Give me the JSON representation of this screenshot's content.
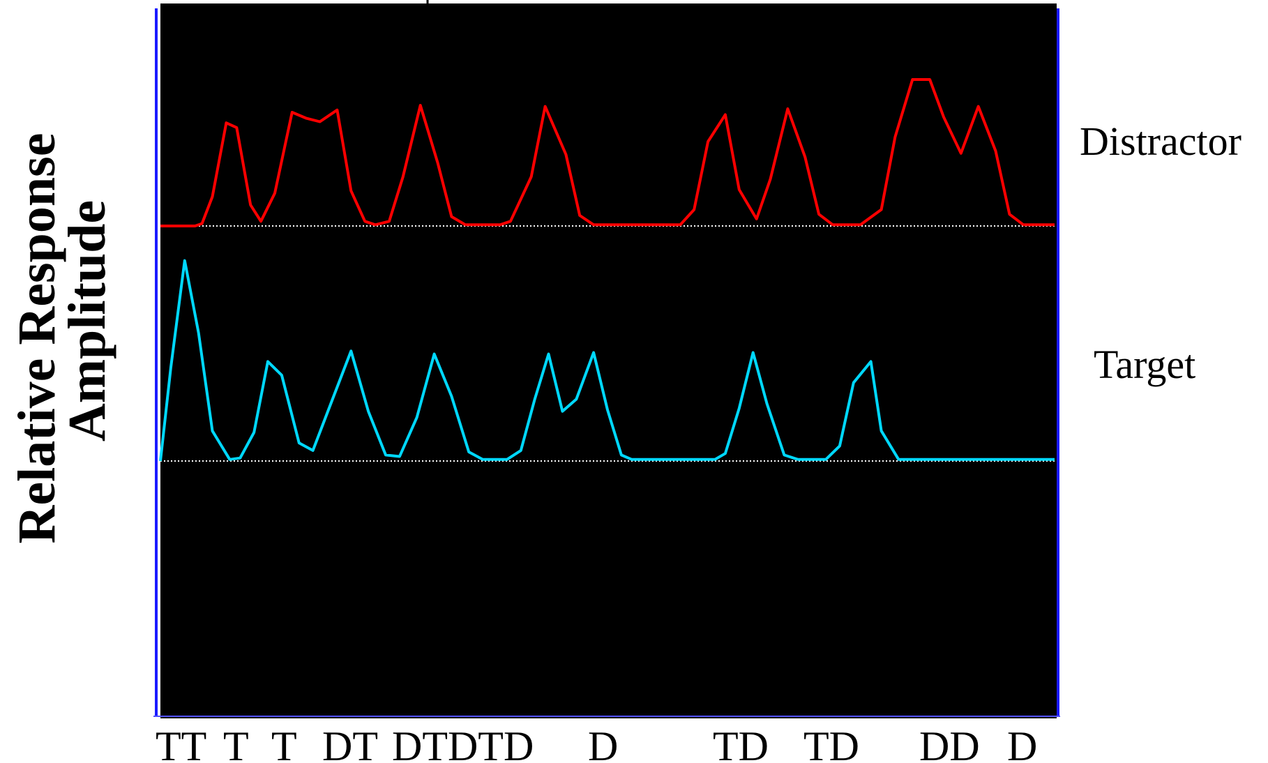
{
  "chart_data": {
    "type": "line",
    "ylabel_lines": [
      "Relative Response",
      "Amplitude"
    ],
    "x_tick_labels": [
      "TT",
      "T",
      "T",
      "DT",
      "DTDTD",
      "D",
      "TD",
      "TD",
      "DD",
      "D"
    ],
    "colors": {
      "plot_background": "#000000",
      "frame": "#1a1aff",
      "baseline": "#ffffff"
    },
    "series": [
      {
        "name": "Distractor",
        "color": "#ff0000",
        "points": [
          [
            0,
            0
          ],
          [
            10,
            0
          ],
          [
            12,
            0.02
          ],
          [
            15,
            0.25
          ],
          [
            19,
            0.88
          ],
          [
            22,
            0.84
          ],
          [
            26,
            0.18
          ],
          [
            29,
            0.04
          ],
          [
            33,
            0.28
          ],
          [
            38,
            0.97
          ],
          [
            42,
            0.92
          ],
          [
            46,
            0.89
          ],
          [
            51,
            0.99
          ],
          [
            55,
            0.3
          ],
          [
            59,
            0.04
          ],
          [
            62,
            0.01
          ],
          [
            66,
            0.04
          ],
          [
            70,
            0.42
          ],
          [
            75,
            1.03
          ],
          [
            80,
            0.54
          ],
          [
            84,
            0.08
          ],
          [
            88,
            0.01
          ],
          [
            94,
            0.01
          ],
          [
            98,
            0.01
          ],
          [
            101,
            0.04
          ],
          [
            107,
            0.42
          ],
          [
            111,
            1.02
          ],
          [
            117,
            0.61
          ],
          [
            121,
            0.09
          ],
          [
            125,
            0.01
          ],
          [
            150,
            0.01
          ],
          [
            154,
            0.14
          ],
          [
            158,
            0.72
          ],
          [
            163,
            0.95
          ],
          [
            167,
            0.31
          ],
          [
            172,
            0.06
          ],
          [
            176,
            0.4
          ],
          [
            181,
            1.0
          ],
          [
            186,
            0.59
          ],
          [
            190,
            0.1
          ],
          [
            194,
            0.01
          ],
          [
            202,
            0.01
          ],
          [
            208,
            0.14
          ],
          [
            212,
            0.76
          ],
          [
            217,
            1.25
          ],
          [
            222,
            1.25
          ],
          [
            226,
            0.93
          ],
          [
            231,
            0.62
          ],
          [
            236,
            1.02
          ],
          [
            241,
            0.64
          ],
          [
            245,
            0.1
          ],
          [
            249,
            0.01
          ],
          [
            258,
            0.01
          ]
        ]
      },
      {
        "name": "Target",
        "color": "#00d8ff",
        "points": [
          [
            0,
            0
          ],
          [
            3,
            0.62
          ],
          [
            7,
            1.33
          ],
          [
            11,
            0.85
          ],
          [
            15,
            0.2
          ],
          [
            20,
            0.01
          ],
          [
            23,
            0.02
          ],
          [
            27,
            0.19
          ],
          [
            31,
            0.66
          ],
          [
            35,
            0.57
          ],
          [
            40,
            0.12
          ],
          [
            44,
            0.07
          ],
          [
            50,
            0.43
          ],
          [
            55,
            0.73
          ],
          [
            60,
            0.33
          ],
          [
            65,
            0.04
          ],
          [
            69,
            0.03
          ],
          [
            74,
            0.29
          ],
          [
            79,
            0.71
          ],
          [
            84,
            0.43
          ],
          [
            89,
            0.06
          ],
          [
            93,
            0.01
          ],
          [
            100,
            0.01
          ],
          [
            104,
            0.07
          ],
          [
            108,
            0.41
          ],
          [
            112,
            0.71
          ],
          [
            116,
            0.33
          ],
          [
            120,
            0.41
          ],
          [
            125,
            0.72
          ],
          [
            129,
            0.34
          ],
          [
            133,
            0.04
          ],
          [
            136,
            0.01
          ],
          [
            150,
            0.01
          ],
          [
            160,
            0.01
          ],
          [
            163,
            0.05
          ],
          [
            167,
            0.35
          ],
          [
            171,
            0.72
          ],
          [
            175,
            0.38
          ],
          [
            180,
            0.04
          ],
          [
            184,
            0.01
          ],
          [
            192,
            0.01
          ],
          [
            196,
            0.1
          ],
          [
            200,
            0.52
          ],
          [
            205,
            0.66
          ],
          [
            208,
            0.2
          ],
          [
            213,
            0.01
          ],
          [
            217,
            0.01
          ],
          [
            224,
            0.01
          ],
          [
            258,
            0.01
          ]
        ]
      }
    ]
  }
}
